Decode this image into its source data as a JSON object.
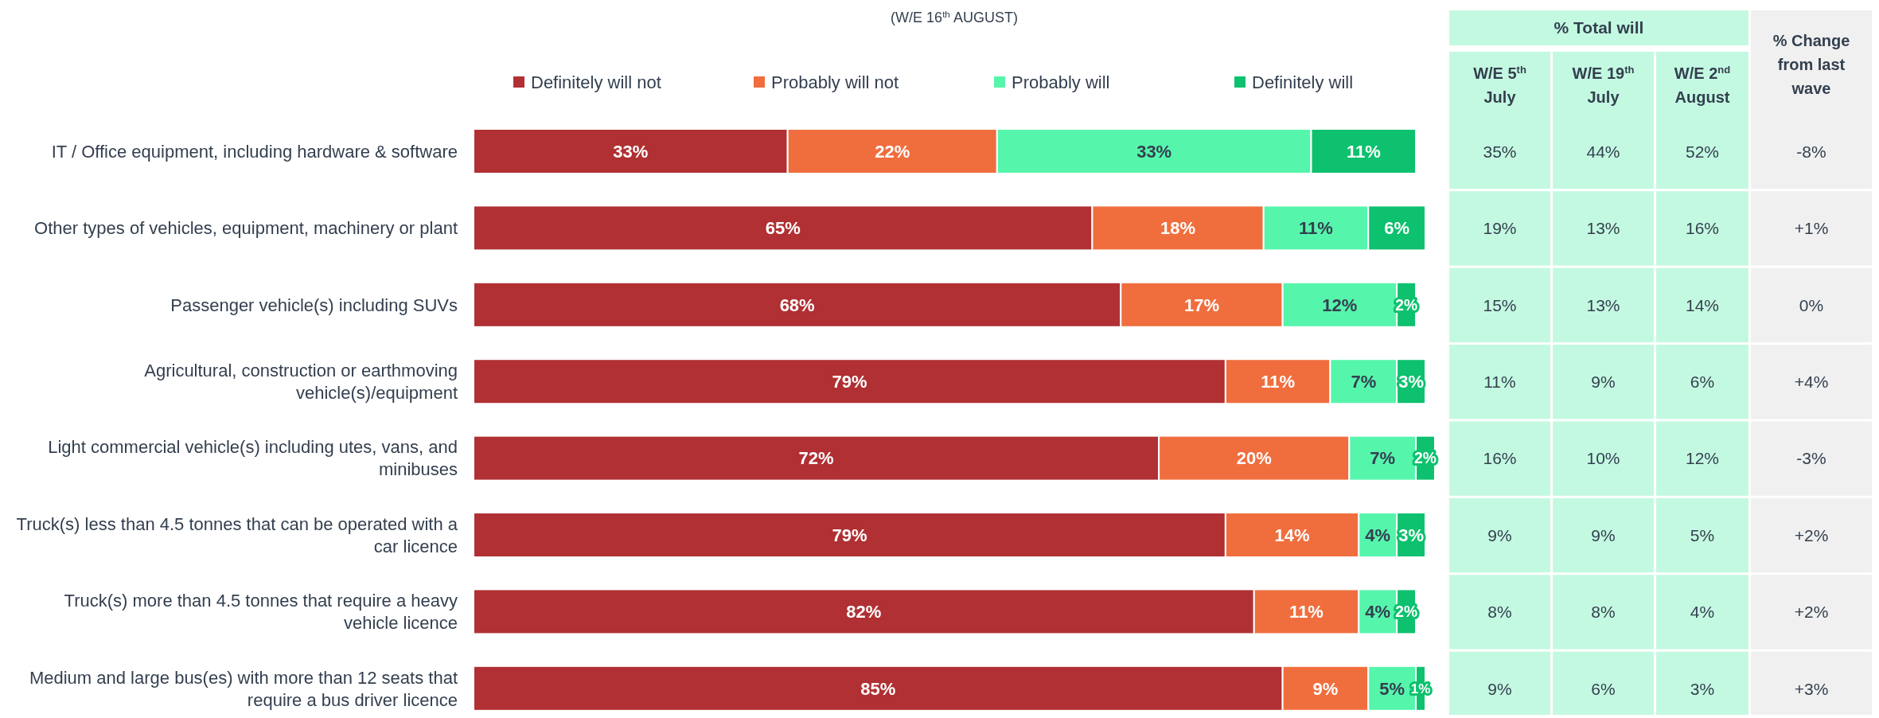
{
  "chart_data": [
    {
      "type": "bar",
      "title": "(W/E 16$^{th}$ AUGUST)",
      "orientation": "horizontal",
      "stacked": true,
      "legend": "top",
      "xlim": [
        0,
        101
      ],
      "categories": [
        "IT / Office equipment, including hardware & software",
        "Other types of vehicles, equipment, machinery or plant",
        "Passenger vehicle(s) including SUVs",
        "Agricultural, construction or earthmoving vehicle(s)/equipment",
        "Light commercial vehicle(s) including utes, vans, and minibuses",
        "Truck(s) less than 4.5 tonnes that can be operated with a car licence",
        "Truck(s) more than 4.5 tonnes that require a heavy vehicle licence",
        "Medium and large bus(es) with more than 12 seats that require a bus driver licence"
      ],
      "series": [
        {
          "name": "Definitely will not",
          "color": "#b03033",
          "values": [
            33,
            65,
            68,
            79,
            72,
            79,
            82,
            85
          ],
          "value_labels": [
            "33%",
            "65%",
            "68%",
            "79%",
            "72%",
            "79%",
            "82%",
            "85%"
          ]
        },
        {
          "name": "Probably will not",
          "color": "#f06e3e",
          "values": [
            22,
            18,
            17,
            11,
            20,
            14,
            11,
            9
          ],
          "value_labels": [
            "22%",
            "18%",
            "17%",
            "11%",
            "20%",
            "14%",
            "11%",
            "9%"
          ]
        },
        {
          "name": "Probably will",
          "color": "#56f5ac",
          "values": [
            33,
            11,
            12,
            7,
            7,
            4,
            4,
            5
          ],
          "value_labels": [
            "33%",
            "11%",
            "12%",
            "7%",
            "7%",
            "4%",
            "4%",
            "5%"
          ]
        },
        {
          "name": "Definitely will",
          "color": "#0dc16e",
          "values": [
            11,
            6,
            2,
            3,
            2,
            3,
            2,
            1
          ],
          "value_labels": [
            "11%",
            "6%",
            "2%",
            "3%",
            "2%",
            "3%",
            "2%",
            "1%"
          ]
        }
      ]
    },
    {
      "type": "other",
      "title": "% Total will",
      "categories": [
        "W/E 5$^{th}$ July",
        "W/E 19$^{th}$ July",
        "W/E 2$^{nd}$ August",
        "% Change from last wave"
      ],
      "colors": [
        "#c4f9e1",
        "#c4f9e1",
        "#c4f9e1",
        "#f0f0f0"
      ],
      "cell_labels": [
        [
          "35%",
          "44%",
          "52%",
          "-8%"
        ],
        [
          "19%",
          "13%",
          "16%",
          "+1%"
        ],
        [
          "15%",
          "13%",
          "14%",
          "0%"
        ],
        [
          "11%",
          "9%",
          "6%",
          "+4%"
        ],
        [
          "16%",
          "10%",
          "12%",
          "-3%"
        ],
        [
          "9%",
          "9%",
          "5%",
          "+2%"
        ],
        [
          "8%",
          "8%",
          "4%",
          "+2%"
        ],
        [
          "9%",
          "6%",
          "3%",
          "+3%"
        ]
      ]
    }
  ]
}
